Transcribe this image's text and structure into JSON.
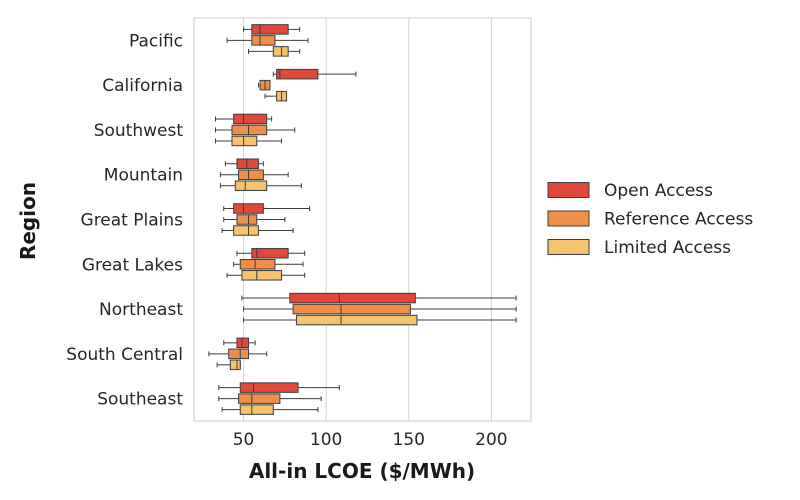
{
  "chart_data": {
    "type": "boxplot",
    "orientation": "horizontal",
    "title": "",
    "xlabel": "All-in LCOE ($/MWh)",
    "ylabel": "Region",
    "xlim": [
      20,
      224
    ],
    "xticks": [
      50,
      100,
      150,
      200
    ],
    "grid": "x",
    "legend_position": "right",
    "categories": [
      "Pacific",
      "California",
      "Southwest",
      "Mountain",
      "Great Plains",
      "Great Lakes",
      "Northeast",
      "South Central",
      "Southeast"
    ],
    "series": [
      {
        "name": "Open Access",
        "color": "#e0493a",
        "boxes": [
          {
            "whislo": 50,
            "q1": 55,
            "med": 60,
            "q3": 77,
            "whishi": 84
          },
          {
            "whislo": 68,
            "q1": 70,
            "med": 72,
            "q3": 95,
            "whishi": 118
          },
          {
            "whislo": 33,
            "q1": 44,
            "med": 50,
            "q3": 64,
            "whishi": 67
          },
          {
            "whislo": 39,
            "q1": 46,
            "med": 52,
            "q3": 59,
            "whishi": 62
          },
          {
            "whislo": 38,
            "q1": 44,
            "med": 50,
            "q3": 62,
            "whishi": 90
          },
          {
            "whislo": 46,
            "q1": 55,
            "med": 58,
            "q3": 77,
            "whishi": 87
          },
          {
            "whislo": 49,
            "q1": 78,
            "med": 108,
            "q3": 154,
            "whishi": 215
          },
          {
            "whislo": 38,
            "q1": 46,
            "med": 49,
            "q3": 53,
            "whishi": 57
          },
          {
            "whislo": 35,
            "q1": 48,
            "med": 56,
            "q3": 83,
            "whishi": 108
          }
        ]
      },
      {
        "name": "Reference Access",
        "color": "#f08f4b",
        "boxes": [
          {
            "whislo": 40,
            "q1": 55,
            "med": 60,
            "q3": 69,
            "whishi": 89
          },
          {
            "whislo": 59,
            "q1": 60,
            "med": 63,
            "q3": 66,
            "whishi": 66
          },
          {
            "whislo": 33,
            "q1": 43,
            "med": 53,
            "q3": 64,
            "whishi": 81
          },
          {
            "whislo": 36,
            "q1": 47,
            "med": 53,
            "q3": 62,
            "whishi": 77
          },
          {
            "whislo": 38,
            "q1": 46,
            "med": 53,
            "q3": 58,
            "whishi": 75
          },
          {
            "whislo": 44,
            "q1": 48,
            "med": 57,
            "q3": 69,
            "whishi": 86
          },
          {
            "whislo": 50,
            "q1": 80,
            "med": 109,
            "q3": 151,
            "whishi": 215
          },
          {
            "whislo": 29,
            "q1": 41,
            "med": 48,
            "q3": 53,
            "whishi": 64
          },
          {
            "whislo": 35,
            "q1": 47,
            "med": 55,
            "q3": 72,
            "whishi": 97
          }
        ]
      },
      {
        "name": "Limited Access",
        "color": "#f4c36b",
        "boxes": [
          {
            "whislo": 53,
            "q1": 68,
            "med": 73,
            "q3": 77,
            "whishi": 84
          },
          {
            "whislo": 63,
            "q1": 70,
            "med": 73,
            "q3": 76,
            "whishi": 76
          },
          {
            "whislo": 33,
            "q1": 43,
            "med": 50,
            "q3": 58,
            "whishi": 73
          },
          {
            "whislo": 36,
            "q1": 45,
            "med": 51,
            "q3": 64,
            "whishi": 85
          },
          {
            "whislo": 37,
            "q1": 44,
            "med": 53,
            "q3": 59,
            "whishi": 80
          },
          {
            "whislo": 40,
            "q1": 49,
            "med": 58,
            "q3": 73,
            "whishi": 87
          },
          {
            "whislo": 50,
            "q1": 82,
            "med": 109,
            "q3": 155,
            "whishi": 215
          },
          {
            "whislo": 34,
            "q1": 42,
            "med": 46,
            "q3": 48,
            "whishi": 48
          },
          {
            "whislo": 37,
            "q1": 48,
            "med": 55,
            "q3": 68,
            "whishi": 95
          }
        ]
      }
    ]
  }
}
